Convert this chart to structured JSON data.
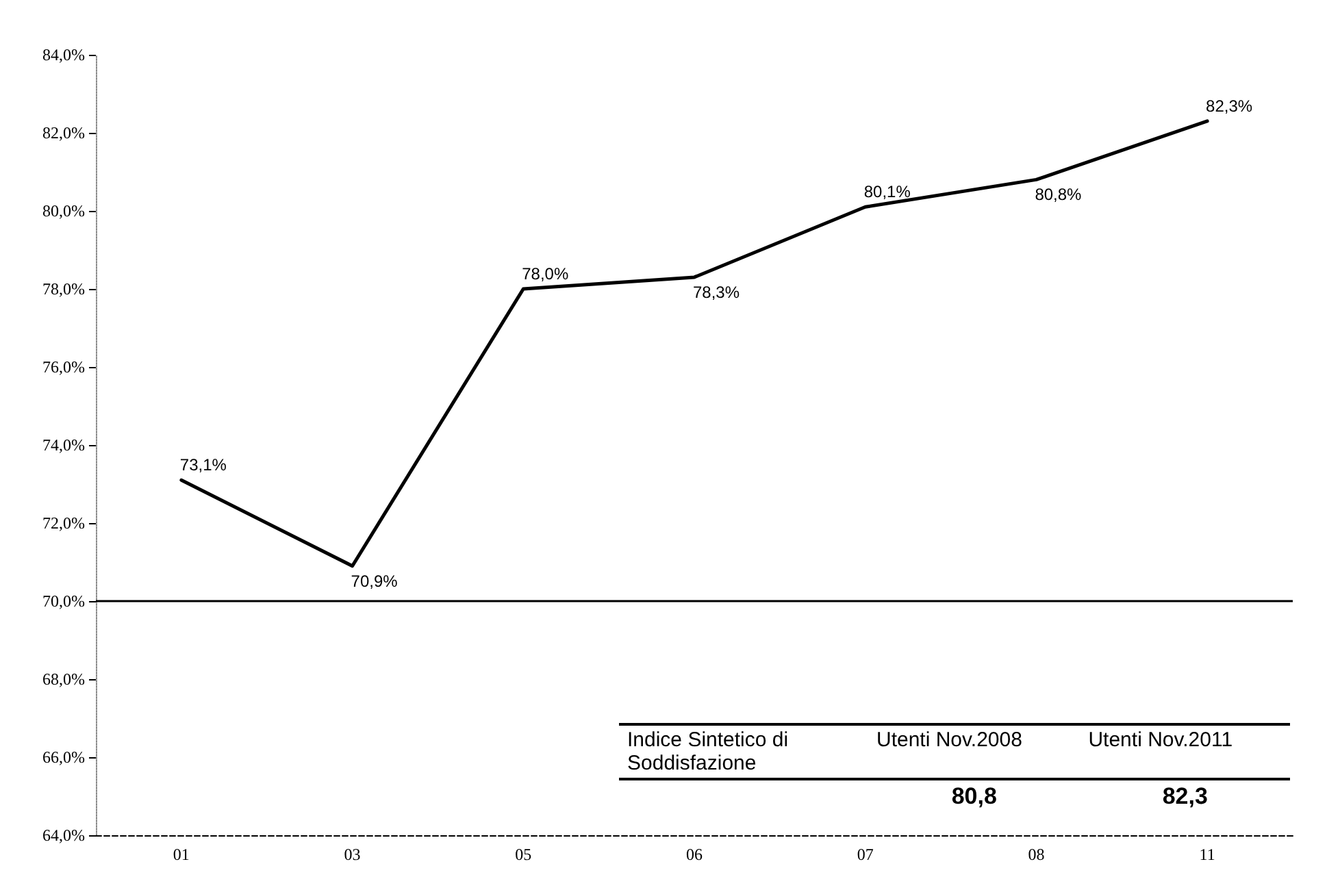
{
  "chart_data": {
    "type": "line",
    "categories": [
      "01",
      "03",
      "05",
      "06",
      "07",
      "08",
      "11"
    ],
    "series": [
      {
        "color": "#000000",
        "values": [
          73.1,
          70.9,
          78.0,
          78.3,
          80.1,
          80.8,
          82.3
        ],
        "value_labels": [
          "73,1%",
          "70,9%",
          "78,0%",
          "78,3%",
          "80,1%",
          "80,8%",
          "82,3%"
        ]
      }
    ],
    "ylim": [
      64,
      84
    ],
    "yticks": [
      {
        "value": 64,
        "label": "64,0%"
      },
      {
        "value": 66,
        "label": "66,0%"
      },
      {
        "value": 68,
        "label": "68,0%"
      },
      {
        "value": 70,
        "label": "70,0%"
      },
      {
        "value": 72,
        "label": "72,0%"
      },
      {
        "value": 74,
        "label": "74,0%"
      },
      {
        "value": 76,
        "label": "76,0%"
      },
      {
        "value": 78,
        "label": "78,0%"
      },
      {
        "value": 80,
        "label": "80,0%"
      },
      {
        "value": 82,
        "label": "82,0%"
      },
      {
        "value": 84,
        "label": "84,0%"
      }
    ],
    "ref_lines": [
      {
        "axis": "y",
        "value": 70,
        "color": "#000000"
      }
    ],
    "annotations": [
      "Indice Sintetico di Soddisfazione",
      "Utenti Nov.2008",
      "Utenti Nov.2011",
      "80,8",
      "82,3"
    ],
    "grid": false,
    "marker": "none",
    "line_style": "solid"
  }
}
